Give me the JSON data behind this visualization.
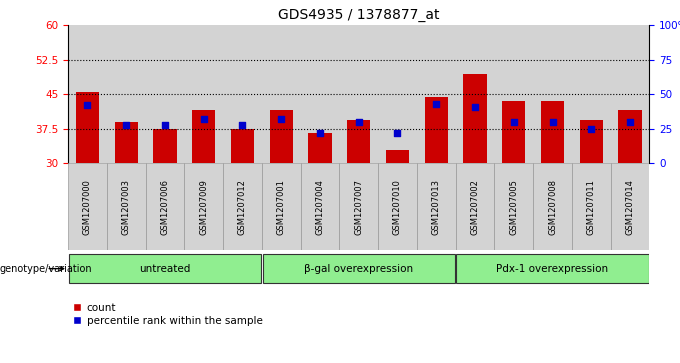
{
  "title": "GDS4935 / 1378877_at",
  "samples": [
    "GSM1207000",
    "GSM1207003",
    "GSM1207006",
    "GSM1207009",
    "GSM1207012",
    "GSM1207001",
    "GSM1207004",
    "GSM1207007",
    "GSM1207010",
    "GSM1207013",
    "GSM1207002",
    "GSM1207005",
    "GSM1207008",
    "GSM1207011",
    "GSM1207014"
  ],
  "counts": [
    45.5,
    39.0,
    37.5,
    41.5,
    37.5,
    41.5,
    36.5,
    39.5,
    33.0,
    44.5,
    49.5,
    43.5,
    43.5,
    39.5,
    41.5
  ],
  "percentiles": [
    42,
    28,
    28,
    32,
    28,
    32,
    22,
    30,
    22,
    43,
    41,
    30,
    30,
    25,
    30
  ],
  "groups": [
    {
      "label": "untreated",
      "start": 0,
      "end": 5
    },
    {
      "label": "β-gal overexpression",
      "start": 5,
      "end": 10
    },
    {
      "label": "Pdx-1 overexpression",
      "start": 10,
      "end": 15
    }
  ],
  "group_color": "#90EE90",
  "bar_color": "#CC0000",
  "dot_color": "#0000CC",
  "ylim_left": [
    30,
    60
  ],
  "ylim_right": [
    0,
    100
  ],
  "yticks_left": [
    30,
    37.5,
    45,
    52.5,
    60
  ],
  "ytick_labels_left": [
    "30",
    "37.5",
    "45",
    "52.5",
    "60"
  ],
  "yticks_right": [
    0,
    25,
    50,
    75,
    100
  ],
  "ytick_labels_right": [
    "0",
    "25",
    "50",
    "75",
    "100%"
  ],
  "hlines": [
    37.5,
    45,
    52.5
  ],
  "bg_color": "#D3D3D3",
  "plot_bg": "#FFFFFF",
  "genotype_label": "genotype/variation"
}
